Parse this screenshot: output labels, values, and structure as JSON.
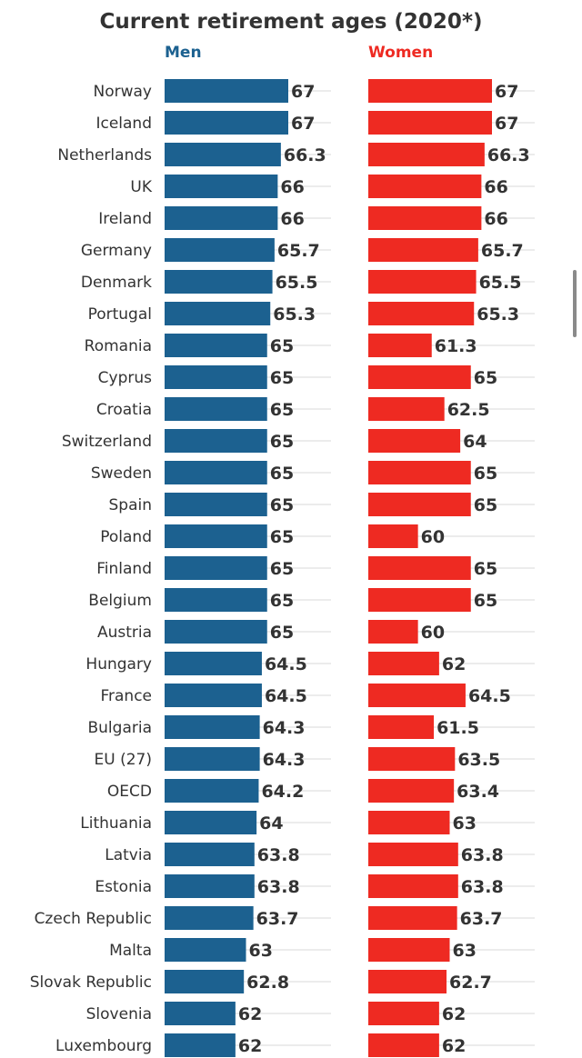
{
  "chart_data": {
    "type": "bar",
    "orientation": "horizontal",
    "title": "Current retirement ages (2020*)",
    "categories": [
      "Norway",
      "Iceland",
      "Netherlands",
      "UK",
      "Ireland",
      "Germany",
      "Denmark",
      "Portugal",
      "Romania",
      "Cyprus",
      "Croatia",
      "Switzerland",
      "Sweden",
      "Spain",
      "Poland",
      "Finland",
      "Belgium",
      "Austria",
      "Hungary",
      "France",
      "Bulgaria",
      "EU (27)",
      "OECD",
      "Lithuania",
      "Latvia",
      "Estonia",
      "Czech Republic",
      "Malta",
      "Slovak Republic",
      "Slovenia",
      "Luxembourg"
    ],
    "series": [
      {
        "name": "Men",
        "color": "#1c6190",
        "values": [
          67,
          67,
          66.3,
          66,
          66,
          65.7,
          65.5,
          65.3,
          65,
          65,
          65,
          65,
          65,
          65,
          65,
          65,
          65,
          65,
          64.5,
          64.5,
          64.3,
          64.3,
          64.2,
          64,
          63.8,
          63.8,
          63.7,
          63,
          62.8,
          62,
          62
        ],
        "labels": [
          "67",
          "67",
          "66.3",
          "66",
          "66",
          "65.7",
          "65.5",
          "65.3",
          "65",
          "65",
          "65",
          "65",
          "65",
          "65",
          "65",
          "65",
          "65",
          "65",
          "64.5",
          "64.5",
          "64.3",
          "64.3",
          "64.2",
          "64",
          "63.8",
          "63.8",
          "63.7",
          "63",
          "62.8",
          "62",
          "62"
        ]
      },
      {
        "name": "Women",
        "color": "#ee2a22",
        "values": [
          67,
          67,
          66.3,
          66,
          66,
          65.7,
          65.5,
          65.3,
          61.3,
          65,
          62.5,
          64,
          65,
          65,
          60,
          65,
          65,
          60,
          62,
          64.5,
          61.5,
          63.5,
          63.4,
          63,
          63.8,
          63.8,
          63.7,
          63,
          62.7,
          62,
          62
        ],
        "labels": [
          "67",
          "67",
          "66.3",
          "66",
          "66",
          "65.7",
          "65.5",
          "65.3",
          "61.3",
          "65",
          "62.5",
          "64",
          "65",
          "65",
          "60",
          "65",
          "65",
          "60",
          "62",
          "64.5",
          "61.5",
          "63.5",
          "63.4",
          "63",
          "63.8",
          "63.8",
          "63.7",
          "63",
          "62.7",
          "62",
          "62"
        ]
      }
    ],
    "xlim": [
      55.3,
      67
    ],
    "grid": true,
    "legend": "panel titles above each column"
  }
}
